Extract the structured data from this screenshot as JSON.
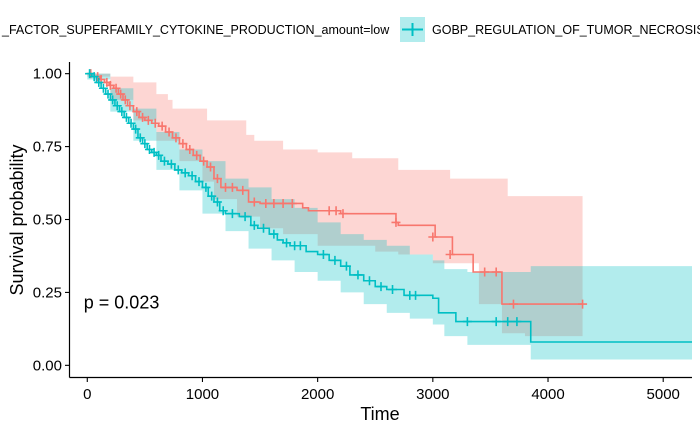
{
  "chart_data": {
    "type": "line",
    "subtype": "kaplan-meier",
    "title": "",
    "xlabel": "Time",
    "ylabel": "Survival probability",
    "xlim": [
      -150,
      5250
    ],
    "ylim": [
      -0.04,
      1.04
    ],
    "xticks": [
      0,
      1000,
      2000,
      3000,
      4000,
      5000
    ],
    "yticks": [
      0.0,
      0.25,
      0.5,
      0.75,
      1.0
    ],
    "ytick_labels": [
      "0.00",
      "0.25",
      "0.50",
      "0.75",
      "1.00"
    ],
    "grid": false,
    "legend_position": "top",
    "annotation": "p = 0.023",
    "annotation_pos": [
      230,
      0.195
    ],
    "series": [
      {
        "name": "_FACTOR_SUPERFAMILY_CYTOKINE_PRODUCTION_amount=low",
        "color": "#F8766D",
        "fill": "#F8766D",
        "steps": [
          [
            0,
            1.0
          ],
          [
            60,
            0.99
          ],
          [
            110,
            0.98
          ],
          [
            150,
            0.97
          ],
          [
            190,
            0.96
          ],
          [
            230,
            0.95
          ],
          [
            270,
            0.93
          ],
          [
            310,
            0.91
          ],
          [
            350,
            0.89
          ],
          [
            400,
            0.87
          ],
          [
            450,
            0.85
          ],
          [
            500,
            0.84
          ],
          [
            560,
            0.83
          ],
          [
            620,
            0.82
          ],
          [
            680,
            0.8
          ],
          [
            740,
            0.78
          ],
          [
            800,
            0.76
          ],
          [
            860,
            0.74
          ],
          [
            920,
            0.72
          ],
          [
            980,
            0.7
          ],
          [
            1040,
            0.68
          ],
          [
            1100,
            0.64
          ],
          [
            1160,
            0.61
          ],
          [
            1300,
            0.6
          ],
          [
            1400,
            0.56
          ],
          [
            1500,
            0.555
          ],
          [
            1870,
            0.54
          ],
          [
            1920,
            0.53
          ],
          [
            2200,
            0.52
          ],
          [
            2680,
            0.49
          ],
          [
            2700,
            0.48
          ],
          [
            3020,
            0.44
          ],
          [
            3170,
            0.38
          ],
          [
            3350,
            0.32
          ],
          [
            3600,
            0.21
          ],
          [
            4300,
            0.21
          ]
        ],
        "upper": [
          [
            0,
            1.0
          ],
          [
            200,
            0.99
          ],
          [
            400,
            0.97
          ],
          [
            600,
            0.93
          ],
          [
            700,
            0.91
          ],
          [
            740,
            0.88
          ],
          [
            1040,
            0.84
          ],
          [
            1380,
            0.79
          ],
          [
            1450,
            0.77
          ],
          [
            1700,
            0.74
          ],
          [
            2000,
            0.73
          ],
          [
            2300,
            0.71
          ],
          [
            2700,
            0.67
          ],
          [
            3150,
            0.64
          ],
          [
            3650,
            0.58
          ],
          [
            4300,
            0.58
          ]
        ],
        "lower": [
          [
            0,
            0.99
          ],
          [
            200,
            0.91
          ],
          [
            400,
            0.84
          ],
          [
            600,
            0.77
          ],
          [
            800,
            0.7
          ],
          [
            1000,
            0.63
          ],
          [
            1100,
            0.57
          ],
          [
            1300,
            0.51
          ],
          [
            1500,
            0.47
          ],
          [
            1700,
            0.45
          ],
          [
            2000,
            0.41
          ],
          [
            2500,
            0.39
          ],
          [
            2700,
            0.38
          ],
          [
            3000,
            0.35
          ],
          [
            3400,
            0.21
          ],
          [
            3600,
            0.11
          ],
          [
            3800,
            0.1
          ],
          [
            4300,
            0.1
          ]
        ],
        "censors": [
          [
            30,
            1.0
          ],
          [
            90,
            0.99
          ],
          [
            120,
            0.98
          ],
          [
            170,
            0.97
          ],
          [
            200,
            0.96
          ],
          [
            250,
            0.95
          ],
          [
            290,
            0.93
          ],
          [
            330,
            0.91
          ],
          [
            370,
            0.89
          ],
          [
            430,
            0.87
          ],
          [
            480,
            0.85
          ],
          [
            530,
            0.84
          ],
          [
            590,
            0.83
          ],
          [
            650,
            0.82
          ],
          [
            710,
            0.8
          ],
          [
            770,
            0.78
          ],
          [
            830,
            0.76
          ],
          [
            890,
            0.74
          ],
          [
            950,
            0.72
          ],
          [
            1010,
            0.7
          ],
          [
            1070,
            0.68
          ],
          [
            1130,
            0.64
          ],
          [
            1200,
            0.61
          ],
          [
            1260,
            0.61
          ],
          [
            1350,
            0.6
          ],
          [
            1450,
            0.56
          ],
          [
            1550,
            0.555
          ],
          [
            1620,
            0.555
          ],
          [
            1700,
            0.555
          ],
          [
            1780,
            0.555
          ],
          [
            2100,
            0.53
          ],
          [
            2160,
            0.53
          ],
          [
            2220,
            0.52
          ],
          [
            2680,
            0.49
          ],
          [
            3000,
            0.44
          ],
          [
            3150,
            0.38
          ],
          [
            3450,
            0.32
          ],
          [
            3550,
            0.32
          ],
          [
            3700,
            0.21
          ],
          [
            4300,
            0.21
          ]
        ]
      },
      {
        "name": "GOBP_REGULATION_OF_TUMOR_NECROSIS",
        "color": "#00BFC4",
        "fill": "#00BFC4",
        "steps": [
          [
            0,
            1.0
          ],
          [
            40,
            0.99
          ],
          [
            80,
            0.97
          ],
          [
            120,
            0.95
          ],
          [
            160,
            0.93
          ],
          [
            200,
            0.91
          ],
          [
            240,
            0.89
          ],
          [
            280,
            0.87
          ],
          [
            320,
            0.85
          ],
          [
            360,
            0.83
          ],
          [
            400,
            0.81
          ],
          [
            440,
            0.78
          ],
          [
            480,
            0.76
          ],
          [
            520,
            0.74
          ],
          [
            560,
            0.73
          ],
          [
            600,
            0.72
          ],
          [
            640,
            0.7
          ],
          [
            700,
            0.69
          ],
          [
            760,
            0.67
          ],
          [
            820,
            0.66
          ],
          [
            880,
            0.65
          ],
          [
            940,
            0.63
          ],
          [
            1000,
            0.61
          ],
          [
            1050,
            0.58
          ],
          [
            1100,
            0.56
          ],
          [
            1150,
            0.53
          ],
          [
            1200,
            0.52
          ],
          [
            1320,
            0.51
          ],
          [
            1420,
            0.48
          ],
          [
            1480,
            0.47
          ],
          [
            1580,
            0.45
          ],
          [
            1650,
            0.43
          ],
          [
            1700,
            0.42
          ],
          [
            1760,
            0.41
          ],
          [
            1900,
            0.39
          ],
          [
            2000,
            0.38
          ],
          [
            2100,
            0.36
          ],
          [
            2200,
            0.34
          ],
          [
            2280,
            0.31
          ],
          [
            2400,
            0.29
          ],
          [
            2500,
            0.27
          ],
          [
            2600,
            0.26
          ],
          [
            2750,
            0.24
          ],
          [
            3000,
            0.23
          ],
          [
            3050,
            0.18
          ],
          [
            3200,
            0.15
          ],
          [
            3400,
            0.15
          ],
          [
            3850,
            0.08
          ],
          [
            5250,
            0.08
          ]
        ],
        "upper": [
          [
            0,
            1.0
          ],
          [
            200,
            0.95
          ],
          [
            400,
            0.88
          ],
          [
            600,
            0.8
          ],
          [
            800,
            0.74
          ],
          [
            1000,
            0.7
          ],
          [
            1200,
            0.64
          ],
          [
            1400,
            0.61
          ],
          [
            1600,
            0.57
          ],
          [
            1800,
            0.54
          ],
          [
            2000,
            0.49
          ],
          [
            2200,
            0.45
          ],
          [
            2400,
            0.43
          ],
          [
            2600,
            0.41
          ],
          [
            2800,
            0.38
          ],
          [
            3000,
            0.36
          ],
          [
            3100,
            0.33
          ],
          [
            3300,
            0.32
          ],
          [
            3850,
            0.34
          ],
          [
            5250,
            0.34
          ]
        ],
        "lower": [
          [
            0,
            0.98
          ],
          [
            200,
            0.87
          ],
          [
            400,
            0.77
          ],
          [
            600,
            0.67
          ],
          [
            800,
            0.6
          ],
          [
            1000,
            0.52
          ],
          [
            1200,
            0.46
          ],
          [
            1400,
            0.4
          ],
          [
            1600,
            0.36
          ],
          [
            1800,
            0.32
          ],
          [
            2000,
            0.29
          ],
          [
            2200,
            0.25
          ],
          [
            2400,
            0.21
          ],
          [
            2600,
            0.18
          ],
          [
            2800,
            0.16
          ],
          [
            3000,
            0.14
          ],
          [
            3100,
            0.1
          ],
          [
            3300,
            0.07
          ],
          [
            3600,
            0.07
          ],
          [
            3850,
            0.02
          ],
          [
            5250,
            0.02
          ]
        ],
        "censors": [
          [
            20,
            1.0
          ],
          [
            60,
            0.99
          ],
          [
            100,
            0.97
          ],
          [
            140,
            0.95
          ],
          [
            180,
            0.93
          ],
          [
            220,
            0.91
          ],
          [
            260,
            0.89
          ],
          [
            300,
            0.87
          ],
          [
            340,
            0.85
          ],
          [
            380,
            0.83
          ],
          [
            420,
            0.81
          ],
          [
            460,
            0.78
          ],
          [
            500,
            0.76
          ],
          [
            540,
            0.74
          ],
          [
            580,
            0.73
          ],
          [
            620,
            0.72
          ],
          [
            670,
            0.7
          ],
          [
            730,
            0.69
          ],
          [
            790,
            0.67
          ],
          [
            850,
            0.66
          ],
          [
            910,
            0.65
          ],
          [
            970,
            0.63
          ],
          [
            1030,
            0.61
          ],
          [
            1080,
            0.58
          ],
          [
            1130,
            0.56
          ],
          [
            1180,
            0.53
          ],
          [
            1260,
            0.52
          ],
          [
            1370,
            0.51
          ],
          [
            1450,
            0.48
          ],
          [
            1530,
            0.47
          ],
          [
            1620,
            0.45
          ],
          [
            1730,
            0.42
          ],
          [
            1800,
            0.41
          ],
          [
            1850,
            0.41
          ],
          [
            2050,
            0.38
          ],
          [
            2150,
            0.36
          ],
          [
            2250,
            0.34
          ],
          [
            2350,
            0.31
          ],
          [
            2450,
            0.29
          ],
          [
            2550,
            0.27
          ],
          [
            2650,
            0.26
          ],
          [
            2800,
            0.24
          ],
          [
            2850,
            0.24
          ],
          [
            3300,
            0.15
          ],
          [
            3550,
            0.15
          ],
          [
            3650,
            0.15
          ],
          [
            3730,
            0.15
          ]
        ]
      }
    ]
  }
}
